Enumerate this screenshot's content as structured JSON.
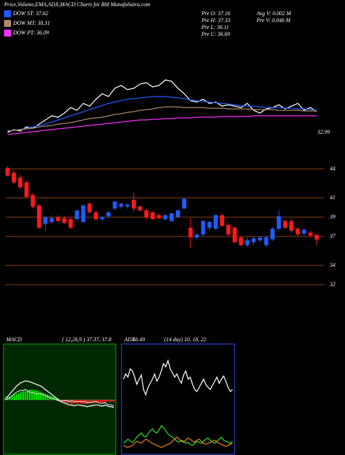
{
  "chart_data": [
    {
      "type": "line",
      "title": "Price,Volume,EMA,ADX,MACD Charts for BM MunafaSutra.com",
      "info": [
        "Pre  O: 37.16",
        "Pre  H: 37.33",
        "Pre  L: 36.11",
        "Pre  C: 36.69",
        "Avg V: 0.002  M",
        "Pre  V: 0.046  M"
      ],
      "ylim": [
        32.0,
        39.0
      ],
      "yticks": [
        32.99
      ],
      "series": [
        {
          "color": "#ffffff",
          "values": [
            32.4,
            32.6,
            32.5,
            32.8,
            32.7,
            33.0,
            33.3,
            33.6,
            33.5,
            33.8,
            34.2,
            34.0,
            34.5,
            34.3,
            34.8,
            35.2,
            35.0,
            35.6,
            35.8,
            35.5,
            35.6,
            35.9,
            36.0,
            35.7,
            35.8,
            36.2,
            36.1,
            35.6,
            35.2,
            34.7,
            34.6,
            34.8,
            34.5,
            34.6,
            34.3,
            34.4,
            34.3,
            34.2,
            34.5,
            34.0,
            33.8,
            34.1,
            34.2,
            34.4,
            34.1,
            34.3,
            34.5,
            34.0,
            34.2,
            33.9
          ]
        },
        {
          "name": "DOW ST: 37.62",
          "color": "#1e5cff",
          "values": [
            32.5,
            32.55,
            32.6,
            32.7,
            32.8,
            32.9,
            33.0,
            33.15,
            33.3,
            33.45,
            33.6,
            33.75,
            33.9,
            34.05,
            34.2,
            34.35,
            34.5,
            34.6,
            34.7,
            34.8,
            34.85,
            34.9,
            34.95,
            35.0,
            35.0,
            35.0,
            34.95,
            34.9,
            34.85,
            34.75,
            34.7,
            34.65,
            34.6,
            34.55,
            34.5,
            34.45,
            34.4,
            34.35,
            34.3,
            34.3,
            34.25,
            34.2,
            34.2,
            34.2,
            34.15,
            34.15,
            34.1,
            34.1,
            34.05,
            34.0
          ]
        },
        {
          "name": "DOW MT: 38.31",
          "color": "#b08a6a",
          "values": [
            32.5,
            32.55,
            32.6,
            32.65,
            32.7,
            32.8,
            32.85,
            32.9,
            33.0,
            33.05,
            33.1,
            33.2,
            33.3,
            33.4,
            33.45,
            33.5,
            33.6,
            33.7,
            33.75,
            33.85,
            33.9,
            34.0,
            34.05,
            34.1,
            34.2,
            34.25,
            34.25,
            34.25,
            34.2,
            34.2,
            34.2,
            34.2,
            34.15,
            34.15,
            34.15,
            34.1,
            34.1,
            34.1,
            34.1,
            34.05,
            34.05,
            34.05,
            34.05,
            34.0,
            34.0,
            34.0,
            34.0,
            33.95,
            33.95,
            33.95
          ]
        },
        {
          "name": "DOW PT: 36.09",
          "color": "#ff33ff",
          "values": [
            32.25,
            32.3,
            32.35,
            32.4,
            32.45,
            32.5,
            32.55,
            32.6,
            32.65,
            32.7,
            32.75,
            32.8,
            32.85,
            32.9,
            32.95,
            33.0,
            33.05,
            33.1,
            33.15,
            33.2,
            33.25,
            33.3,
            33.3,
            33.35,
            33.35,
            33.4,
            33.4,
            33.45,
            33.45,
            33.45,
            33.5,
            33.5,
            33.5,
            33.5,
            33.55,
            33.55,
            33.55,
            33.55,
            33.55,
            33.6,
            33.6,
            33.6,
            33.6,
            33.6,
            33.6,
            33.6,
            33.6,
            33.6,
            33.6,
            33.6
          ]
        }
      ]
    },
    {
      "type": "candlestick",
      "ylim": [
        31.5,
        45.43
      ],
      "yticks": [
        44,
        41,
        39,
        37,
        34,
        32
      ],
      "grid": true,
      "grid_color": "#8b4513",
      "up_color": "#1e5cff",
      "down_color": "#ff1a1a",
      "open": [
        44.1,
        43.6,
        43.1,
        42.6,
        41.3,
        40.2,
        38.3,
        38.5,
        39.0,
        38.9,
        38.8,
        38.8,
        38.5,
        40.4,
        39.5,
        38.8,
        39.1,
        39.9,
        40.1,
        40.1,
        40.8,
        40.1,
        39.7,
        39.5,
        39.2,
        38.8,
        38.6,
        39.0,
        39.9,
        37.9,
        36.9,
        37.2,
        37.9,
        37.8,
        39.2,
        38.2,
        37.9,
        36.9,
        36.1,
        36.4,
        36.6,
        36.1,
        36.7,
        37.8,
        38.6,
        38.6,
        37.8,
        37.3,
        37.4,
        37.16
      ],
      "high": [
        44.3,
        43.9,
        43.4,
        42.8,
        41.5,
        40.4,
        39.1,
        39.2,
        39.2,
        39.1,
        39.0,
        39.8,
        40.3,
        40.6,
        39.7,
        39.1,
        39.6,
        40.7,
        40.5,
        40.4,
        41.5,
        40.2,
        39.9,
        39.6,
        39.4,
        39.4,
        39.4,
        39.8,
        41.0,
        38.9,
        37.3,
        38.7,
        38.6,
        39.3,
        39.4,
        38.4,
        38.1,
        37.1,
        36.9,
        37.0,
        37.0,
        37.1,
        38.0,
        39.7,
        38.8,
        38.9,
        38.0,
        37.8,
        37.6,
        37.33
      ],
      "low": [
        43.2,
        42.4,
        41.9,
        41.0,
        39.9,
        37.8,
        37.6,
        38.3,
        38.5,
        38.3,
        37.8,
        38.6,
        38.4,
        39.4,
        38.7,
        38.6,
        38.9,
        39.7,
        39.9,
        39.9,
        39.6,
        39.6,
        38.7,
        38.7,
        38.8,
        38.7,
        38.5,
        38.9,
        39.8,
        35.8,
        36.7,
        37.0,
        37.6,
        37.7,
        38.0,
        37.0,
        36.3,
        36.0,
        35.9,
        36.1,
        36.4,
        35.9,
        36.5,
        37.6,
        37.8,
        37.4,
        37.0,
        37.1,
        36.9,
        36.11
      ],
      "close": [
        43.3,
        42.6,
        42.1,
        41.1,
        40.1,
        37.9,
        39.0,
        38.9,
        38.6,
        38.4,
        37.9,
        39.7,
        40.2,
        39.5,
        38.8,
        39.0,
        39.5,
        40.6,
        40.4,
        40.3,
        39.9,
        39.7,
        39.0,
        38.8,
        38.9,
        39.2,
        39.4,
        39.7,
        40.9,
        36.9,
        37.2,
        38.6,
        38.5,
        39.2,
        38.1,
        37.2,
        36.4,
        36.1,
        36.6,
        36.8,
        36.9,
        36.9,
        37.8,
        39.1,
        37.9,
        37.6,
        37.2,
        37.7,
        37.1,
        36.69
      ]
    },
    {
      "type": "macd",
      "title": "MACD",
      "subtitle": "( 12,26,9 ) 37.37, 37.8",
      "ylim": [
        -3,
        3
      ],
      "up_color": "#00dd00",
      "down_color": "#ff2020",
      "histogram": [
        0.1,
        0.15,
        0.2,
        0.25,
        0.3,
        0.35,
        0.4,
        0.45,
        0.5,
        0.5,
        0.55,
        0.6,
        0.6,
        0.55,
        0.55,
        0.5,
        0.45,
        0.4,
        0.35,
        0.3,
        0.25,
        0.2,
        0.15,
        0.1,
        0.05,
        -0.05,
        -0.1,
        -0.15,
        -0.2,
        -0.2,
        -0.25,
        -0.25,
        -0.2,
        -0.2,
        -0.2,
        -0.25,
        -0.25,
        -0.25,
        -0.2,
        -0.2,
        -0.2,
        -0.2,
        -0.15,
        -0.15,
        -0.15,
        -0.15,
        -0.1,
        -0.1,
        -0.1,
        -0.1
      ],
      "series": [
        {
          "color": "#ffffff",
          "values": [
            0.1,
            0.2,
            0.35,
            0.5,
            0.65,
            0.8,
            0.9,
            1.0,
            1.05,
            1.1,
            1.08,
            1.05,
            1.0,
            0.95,
            0.9,
            0.85,
            0.8,
            0.7,
            0.6,
            0.5,
            0.4,
            0.3,
            0.2,
            0.1,
            0.0,
            -0.1,
            -0.15,
            -0.2,
            -0.25,
            -0.3,
            -0.3,
            -0.35,
            -0.3,
            -0.3,
            -0.3,
            -0.35,
            -0.35,
            -0.4,
            -0.35,
            -0.35,
            -0.3,
            -0.3,
            -0.3,
            -0.35,
            -0.35,
            -0.3,
            -0.35,
            -0.4,
            -0.4,
            -0.45
          ]
        },
        {
          "color": "#cccccc",
          "values": [
            0.0,
            0.05,
            0.15,
            0.25,
            0.35,
            0.45,
            0.5,
            0.55,
            0.55,
            0.6,
            0.53,
            0.45,
            0.4,
            0.4,
            0.35,
            0.35,
            0.35,
            0.3,
            0.25,
            0.2,
            0.15,
            0.1,
            0.05,
            0.0,
            -0.05,
            -0.05,
            -0.05,
            -0.05,
            -0.05,
            -0.1,
            -0.05,
            -0.1,
            -0.1,
            -0.1,
            -0.1,
            -0.1,
            -0.1,
            -0.15,
            -0.15,
            -0.15,
            -0.1,
            -0.1,
            -0.15,
            -0.2,
            -0.2,
            -0.15,
            -0.25,
            -0.3,
            -0.3,
            -0.35
          ]
        }
      ]
    },
    {
      "type": "line",
      "title": "ADX",
      "subtitle": "56.49",
      "note": "(14 day) 10, 18, 22",
      "ylim": [
        0,
        100
      ],
      "series": [
        {
          "color": "#ffffff",
          "values": [
            70,
            75,
            72,
            80,
            78,
            72,
            65,
            70,
            74,
            60,
            55,
            62,
            66,
            70,
            75,
            68,
            72,
            78,
            85,
            82,
            88,
            80,
            76,
            72,
            75,
            70,
            66,
            74,
            78,
            70,
            72,
            65,
            60,
            58,
            62,
            66,
            70,
            65,
            62,
            60,
            64,
            68,
            72,
            66,
            70,
            73,
            68,
            62,
            58,
            60
          ]
        },
        {
          "color": "#22dd22",
          "values": [
            8,
            10,
            12,
            10,
            9,
            11,
            14,
            16,
            18,
            15,
            14,
            17,
            20,
            22,
            19,
            18,
            21,
            25,
            23,
            20,
            17,
            15,
            14,
            12,
            10,
            9,
            11,
            10,
            8,
            9,
            7,
            6,
            8,
            10,
            9,
            8,
            10,
            12,
            13,
            11,
            9,
            8,
            10,
            12,
            14,
            11,
            10,
            9,
            8,
            10
          ]
        },
        {
          "color": "#e07b20",
          "values": [
            6,
            5,
            4,
            5,
            6,
            8,
            10,
            9,
            8,
            10,
            12,
            11,
            9,
            8,
            7,
            6,
            5,
            4,
            5,
            6,
            7,
            8,
            10,
            12,
            14,
            12,
            10,
            9,
            11,
            13,
            12,
            10,
            9,
            11,
            12,
            10,
            8,
            7,
            8,
            9,
            10,
            11,
            9,
            8,
            7,
            6,
            5,
            6,
            7,
            8
          ]
        }
      ]
    }
  ]
}
